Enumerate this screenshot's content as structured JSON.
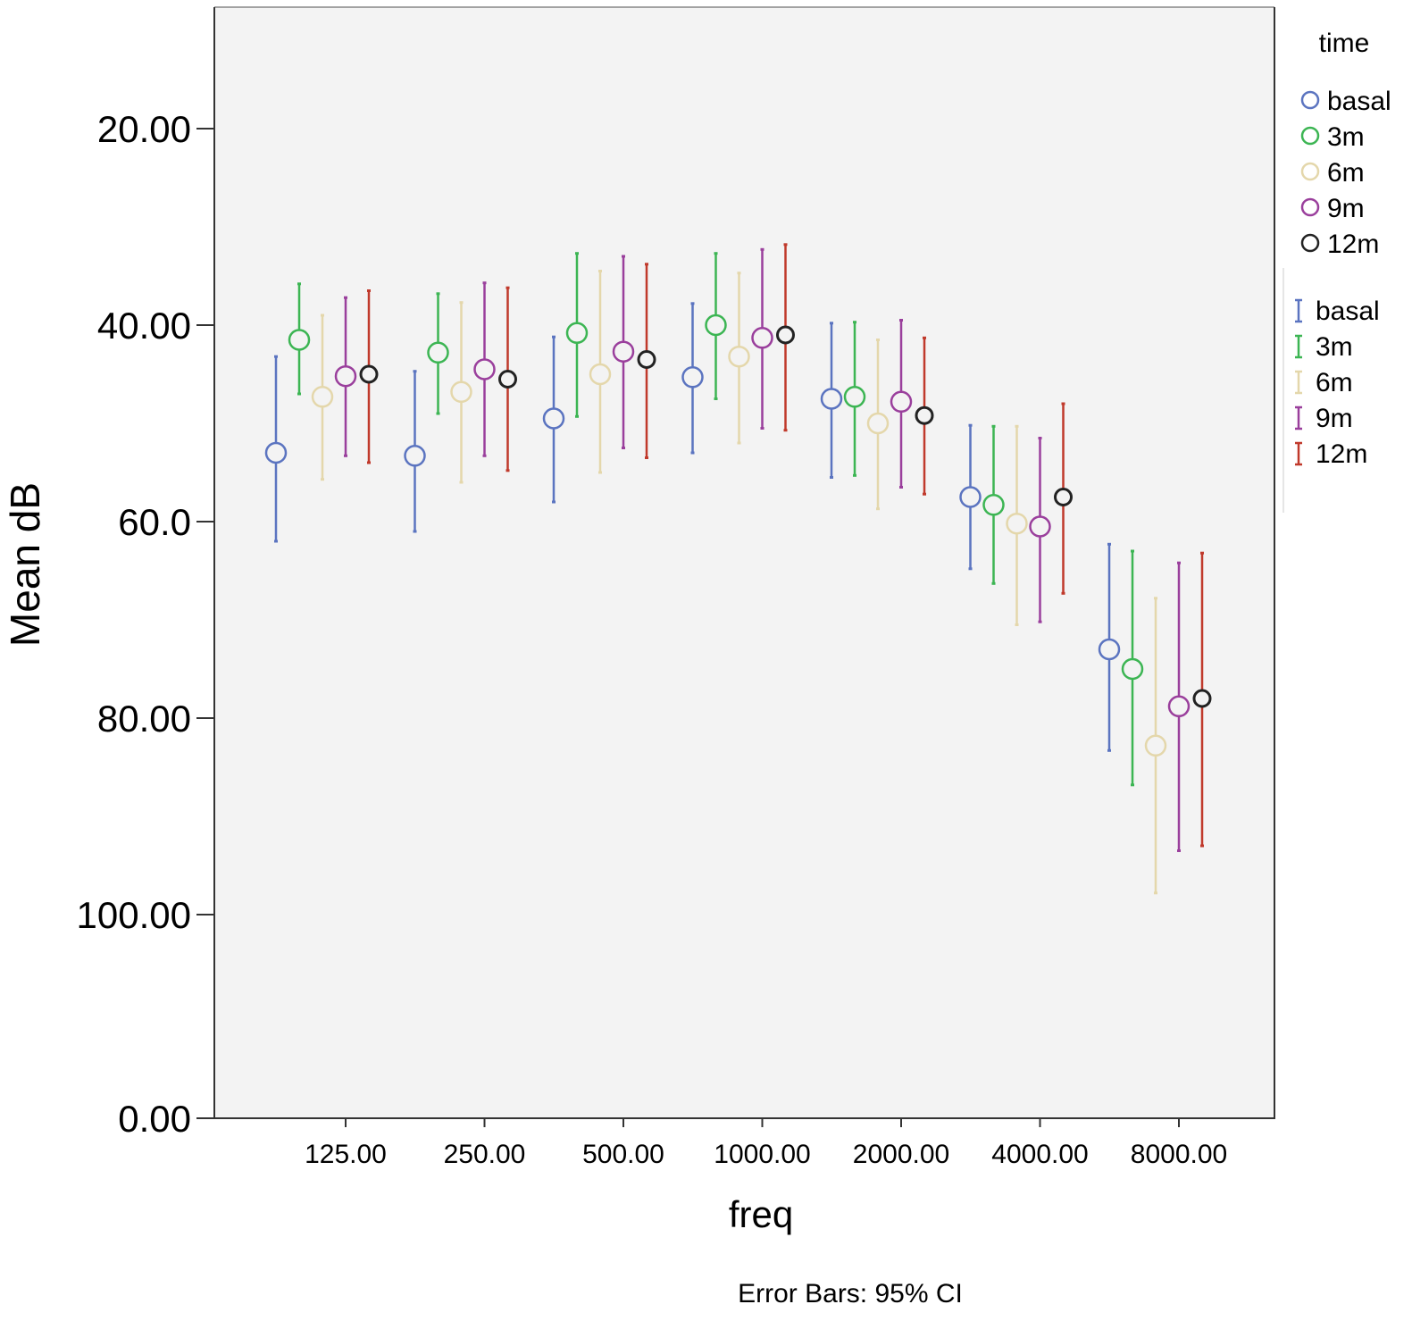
{
  "chart_data": {
    "type": "scatter",
    "subtype": "error-bar",
    "xlabel": "freq",
    "ylabel": "Mean dB",
    "footnote": "Error Bars: 95% CI",
    "categories": [
      "125.00",
      "250.00",
      "500.00",
      "1000.00",
      "2000.00",
      "4000.00",
      "8000.00"
    ],
    "y_ticks": [
      {
        "value": 0,
        "label": "0.00"
      },
      {
        "value": 20,
        "label": "20.00"
      },
      {
        "value": 40,
        "label": "40.00"
      },
      {
        "value": 60,
        "label": "60.0"
      },
      {
        "value": 80,
        "label": "80.00"
      },
      {
        "value": 100,
        "label": "100.00"
      }
    ],
    "ylim": [
      0,
      100
    ],
    "y_axis_note": "axis labels as printed in the source figure",
    "legend_title": "time",
    "legend_placement": "right",
    "series": [
      {
        "name": "basal",
        "color": "#5b74c0",
        "means": [
          53,
          53.3,
          49.5,
          45.3,
          47.5,
          57.5,
          73
        ],
        "lower": [
          43.2,
          44.7,
          41.2,
          37.8,
          39.8,
          50.2,
          62.3
        ],
        "upper": [
          62,
          61,
          58,
          53,
          55.5,
          64.8,
          83.3
        ]
      },
      {
        "name": "3m",
        "color": "#3cb553",
        "means": [
          41.5,
          42.8,
          40.8,
          40,
          47.3,
          58.3,
          75
        ],
        "lower": [
          35.8,
          36.8,
          32.7,
          32.7,
          39.7,
          50.3,
          63
        ],
        "upper": [
          47,
          49,
          49.3,
          47.5,
          55.3,
          66.3,
          86.8
        ]
      },
      {
        "name": "6m",
        "color": "#e4d7ab",
        "means": [
          47.3,
          46.8,
          45,
          43.2,
          50,
          60.2,
          82.8
        ],
        "lower": [
          39,
          37.7,
          34.5,
          34.7,
          41.5,
          50.3,
          67.8
        ],
        "upper": [
          55.7,
          56,
          55,
          52,
          58.7,
          70.5,
          97.8
        ]
      },
      {
        "name": "9m",
        "color": "#9a3f9c",
        "means": [
          45.2,
          44.5,
          42.7,
          41.3,
          47.8,
          60.5,
          78.8
        ],
        "lower": [
          37.2,
          35.7,
          33,
          32.3,
          39.5,
          51.5,
          64.2
        ],
        "upper": [
          53.3,
          53.3,
          52.5,
          50.5,
          56.5,
          70.2,
          93.5
        ]
      },
      {
        "name": "12m",
        "color": "#c0392b",
        "marker_color": "#222222",
        "means": [
          45,
          45.5,
          43.5,
          41,
          49.2,
          57.5,
          78
        ],
        "lower": [
          36.5,
          36.2,
          33.8,
          31.8,
          41.3,
          48,
          63.2
        ],
        "upper": [
          54,
          54.8,
          53.5,
          50.7,
          57.2,
          67.3,
          93
        ]
      }
    ],
    "grid": false
  }
}
